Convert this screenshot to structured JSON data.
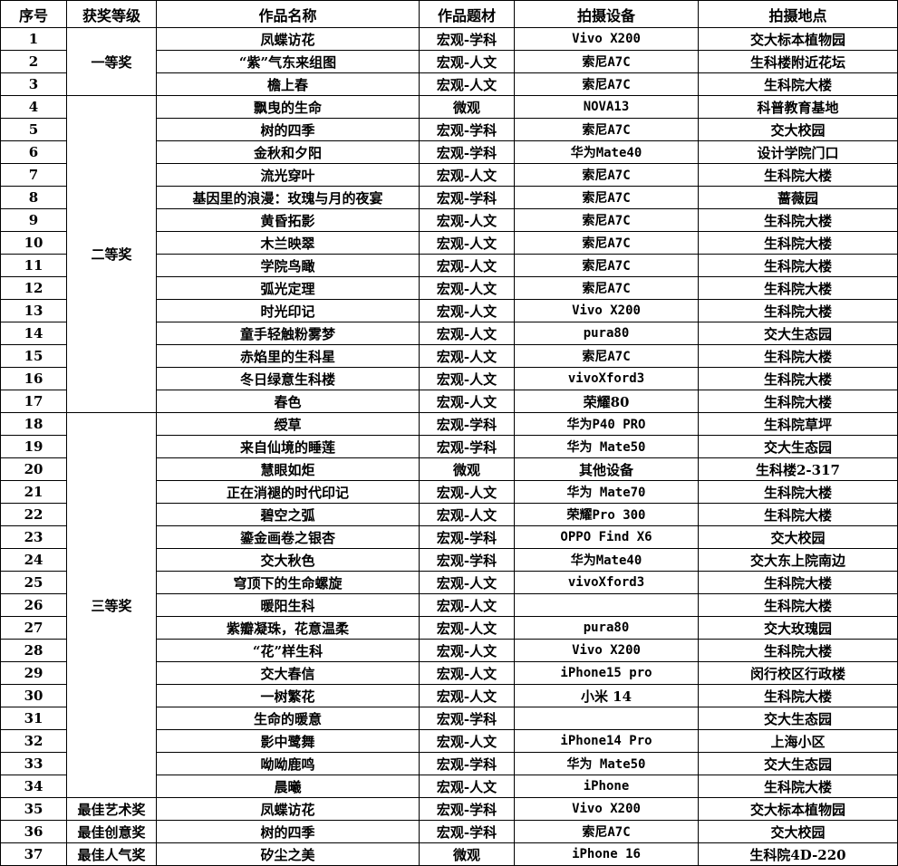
{
  "headers": [
    "序号",
    "获奖等级",
    "作品名称",
    "作品题材",
    "拍摄设备",
    "拍摄地点"
  ],
  "groups": [
    {
      "award": "一等奖",
      "rows": [
        [
          "1",
          "凤蝶访花",
          "宏观-学科",
          "Vivo X200",
          "交大标本植物园"
        ],
        [
          "2",
          "“紫”气东来组图",
          "宏观-人文",
          "索尼A7C",
          "生科楼附近花坛"
        ],
        [
          "3",
          "檐上春",
          "宏观-人文",
          "索尼A7C",
          "生科院大楼"
        ]
      ]
    },
    {
      "award": "二等奖",
      "rows": [
        [
          "4",
          "飘曳的生命",
          "微观",
          "NOVA13",
          "科普教育基地"
        ],
        [
          "5",
          "树的四季",
          "宏观-学科",
          "索尼A7C",
          "交大校园"
        ],
        [
          "6",
          "金秋和夕阳",
          "宏观-学科",
          "华为Mate40",
          "设计学院门口"
        ],
        [
          "7",
          "流光穿叶",
          "宏观-人文",
          "索尼A7C",
          "生科院大楼"
        ],
        [
          "8",
          "基因里的浪漫：玫瑰与月的夜宴",
          "宏观-学科",
          "索尼A7C",
          "蔷薇园"
        ],
        [
          "9",
          "黄昏拓影",
          "宏观-人文",
          "索尼A7C",
          "生科院大楼"
        ],
        [
          "10",
          "木兰映翠",
          "宏观-人文",
          "索尼A7C",
          "生科院大楼"
        ],
        [
          "11",
          "学院鸟瞰",
          "宏观-人文",
          "索尼A7C",
          "生科院大楼"
        ],
        [
          "12",
          "弧光定理",
          "宏观-人文",
          "索尼A7C",
          "生科院大楼"
        ],
        [
          "13",
          "时光印记",
          "宏观-人文",
          "Vivo X200",
          "生科院大楼"
        ],
        [
          "14",
          "童手轻触粉雾梦",
          "宏观-人文",
          "pura80",
          "交大生态园"
        ],
        [
          "15",
          "赤焰里的生科星",
          "宏观-人文",
          "索尼A7C",
          "生科院大楼"
        ],
        [
          "16",
          "冬日绿意生科楼",
          "宏观-人文",
          "vivoXford3",
          "生科院大楼"
        ],
        [
          "17",
          "春色",
          "宏观-人文",
          "荣耀80",
          "生科院大楼"
        ]
      ]
    },
    {
      "award": "三等奖",
      "rows": [
        [
          "18",
          "绶草",
          "宏观-学科",
          "华为P40 PRO",
          "生科院草坪"
        ],
        [
          "19",
          "来自仙境的睡莲",
          "宏观-学科",
          "华为 Mate50",
          "交大生态园"
        ],
        [
          "20",
          "慧眼如炬",
          "微观",
          "其他设备",
          "生科楼2-317"
        ],
        [
          "21",
          "正在消褪的时代印记",
          "宏观-人文",
          "华为 Mate70",
          "生科院大楼"
        ],
        [
          "22",
          "碧空之弧",
          "宏观-人文",
          "荣耀Pro 300",
          "生科院大楼"
        ],
        [
          "23",
          "鎏金画卷之银杏",
          "宏观-学科",
          "OPPO Find X6",
          "交大校园"
        ],
        [
          "24",
          "交大秋色",
          "宏观-学科",
          "华为Mate40",
          "交大东上院南边"
        ],
        [
          "25",
          "穹顶下的生命螺旋",
          "宏观-人文",
          "vivoXford3",
          "生科院大楼"
        ],
        [
          "26",
          "暖阳生科",
          "宏观-人文",
          "",
          "生科院大楼"
        ],
        [
          "27",
          "紫瓣凝珠，花意温柔",
          "宏观-人文",
          "pura80",
          "交大玫瑰园"
        ],
        [
          "28",
          "“花”样生科",
          "宏观-人文",
          "Vivo X200",
          "生科院大楼"
        ],
        [
          "29",
          "交大春信",
          "宏观-人文",
          "iPhone15 pro",
          "闵行校区行政楼"
        ],
        [
          "30",
          "一树繁花",
          "宏观-人文",
          "小米 14",
          "生科院大楼"
        ],
        [
          "31",
          "生命的暖意",
          "宏观-学科",
          "",
          "交大生态园"
        ],
        [
          "32",
          "影中鹭舞",
          "宏观-人文",
          "iPhone14 Pro",
          "上海小区"
        ],
        [
          "33",
          "呦呦鹿鸣",
          "宏观-学科",
          "华为 Mate50",
          "交大生态园"
        ],
        [
          "34",
          "晨曦",
          "宏观-人文",
          "iPhone",
          "生科院大楼"
        ]
      ]
    },
    {
      "award": "最佳艺术奖",
      "rows": [
        [
          "35",
          "凤蝶访花",
          "宏观-学科",
          "Vivo X200",
          "交大标本植物园"
        ]
      ]
    },
    {
      "award": "最佳创意奖",
      "rows": [
        [
          "36",
          "树的四季",
          "宏观-学科",
          "索尼A7C",
          "交大校园"
        ]
      ]
    },
    {
      "award": "最佳人气奖",
      "rows": [
        [
          "37",
          "矽尘之美",
          "微观",
          "iPhone 16",
          "生科院4D-220"
        ]
      ]
    }
  ]
}
